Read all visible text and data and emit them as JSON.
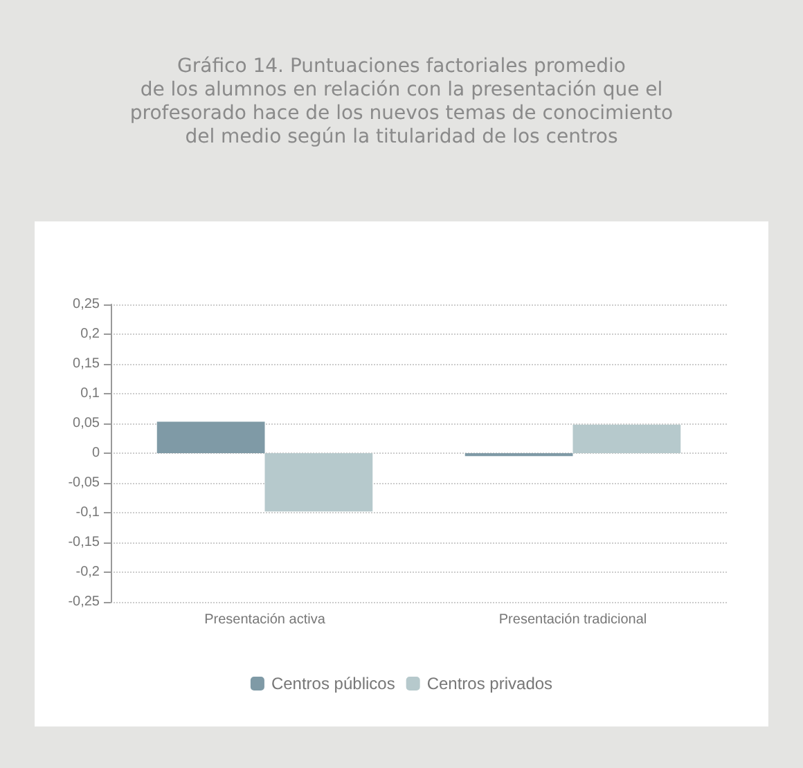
{
  "chart_data": {
    "type": "bar",
    "title": "Gráfico 14. Puntuaciones factoriales promedio\nde los alumnos en relación con la presentación que el\nprofesorado hace de los nuevos temas de conocimiento\ndel medio según la titularidad de los centros",
    "categories": [
      "Presentación activa",
      "Presentación tradicional"
    ],
    "series": [
      {
        "name": "Centros públicos",
        "color": "#7f9aa6",
        "values": [
          0.053,
          -0.005
        ]
      },
      {
        "name": "Centros privados",
        "color": "#b6c9cc",
        "values": [
          -0.098,
          0.048
        ]
      }
    ],
    "ylim": [
      -0.25,
      0.25
    ],
    "yticks": [
      {
        "value": -0.25,
        "label": "-0,25"
      },
      {
        "value": -0.2,
        "label": "-0,2"
      },
      {
        "value": -0.15,
        "label": "-0,15"
      },
      {
        "value": -0.1,
        "label": "-0,1"
      },
      {
        "value": -0.05,
        "label": "-0,05"
      },
      0,
      {
        "value": 0.05,
        "label": "0,05"
      },
      {
        "value": 0.1,
        "label": "0,1"
      },
      {
        "value": 0.15,
        "label": "0,15"
      },
      {
        "value": 0.2,
        "label": "0,2"
      },
      {
        "value": 0.25,
        "label": "0,25"
      }
    ],
    "grid": "y",
    "legend": "bottom"
  }
}
